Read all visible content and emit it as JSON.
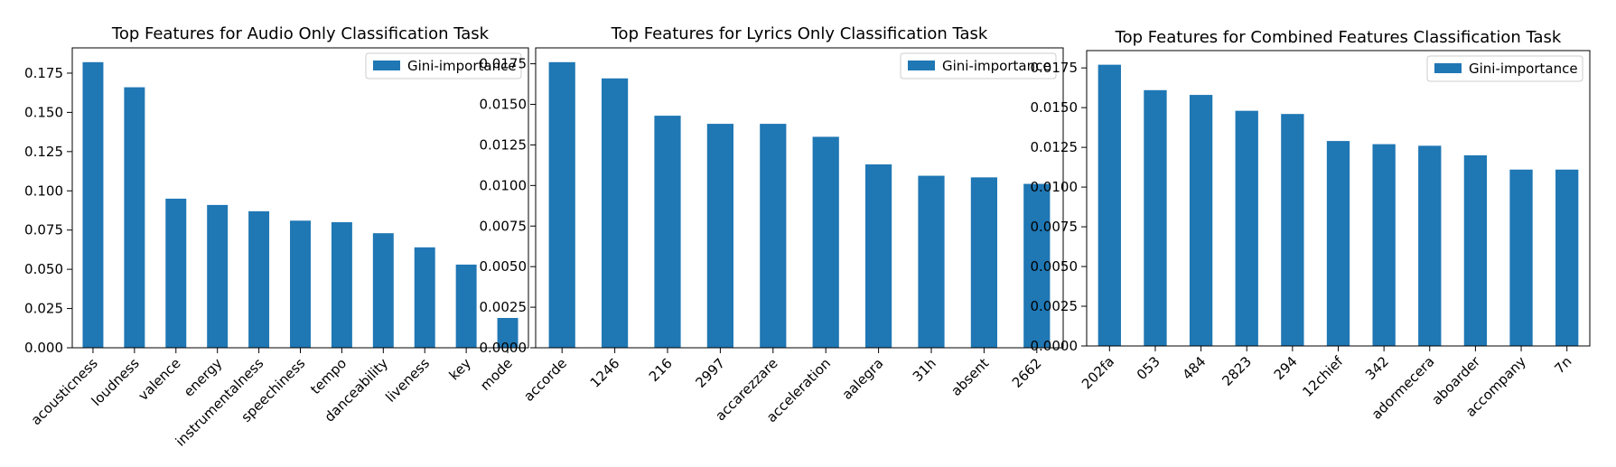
{
  "chart_data": [
    {
      "type": "bar",
      "title": "Top Features for Audio Only Classification Task",
      "xlabel": "",
      "ylabel": "",
      "categories": [
        "acousticness",
        "loudness",
        "valence",
        "energy",
        "instrumentalness",
        "speechiness",
        "tempo",
        "danceability",
        "liveness",
        "key",
        "mode"
      ],
      "series": [
        {
          "name": "Gini-importance",
          "values": [
            0.182,
            0.166,
            0.095,
            0.091,
            0.087,
            0.081,
            0.08,
            0.073,
            0.064,
            0.053,
            0.019
          ]
        }
      ],
      "ylim": [
        0,
        0.1911
      ],
      "yticks": [
        "0.000",
        "0.025",
        "0.050",
        "0.075",
        "0.100",
        "0.125",
        "0.150",
        "0.175"
      ],
      "ytick_values": [
        0,
        0.025,
        0.05,
        0.075,
        0.1,
        0.125,
        0.15,
        0.175
      ],
      "legend": "top-right",
      "grid": false,
      "color": "#1f77b4"
    },
    {
      "type": "bar",
      "title": "Top Features for Lyrics Only Classification Task",
      "xlabel": "",
      "ylabel": "",
      "categories": [
        "accorde",
        "1246",
        "216",
        "2997",
        "accarezzare",
        "acceleration",
        "aalegra",
        "31h",
        "absent",
        "2662"
      ],
      "series": [
        {
          "name": "Gini-importance",
          "values": [
            0.0176,
            0.0166,
            0.0143,
            0.0138,
            0.0138,
            0.013,
            0.0113,
            0.0106,
            0.0105,
            0.0101
          ]
        }
      ],
      "ylim": [
        0,
        0.01848
      ],
      "yticks": [
        "0.0000",
        "0.0025",
        "0.0050",
        "0.0075",
        "0.0100",
        "0.0125",
        "0.0150",
        "0.0175"
      ],
      "ytick_values": [
        0,
        0.0025,
        0.005,
        0.0075,
        0.01,
        0.0125,
        0.015,
        0.0175
      ],
      "legend": "top-right",
      "grid": false,
      "color": "#1f77b4"
    },
    {
      "type": "bar",
      "title": "Top Features for Combined Features Classification Task",
      "xlabel": "",
      "ylabel": "",
      "categories": [
        "202fa",
        "053",
        "484",
        "2823",
        "294",
        "12chief",
        "342",
        "adormecera",
        "aboarder",
        "accompany",
        "7n"
      ],
      "series": [
        {
          "name": "Gini-importance",
          "values": [
            0.0177,
            0.0161,
            0.0158,
            0.0148,
            0.0146,
            0.0129,
            0.0127,
            0.0126,
            0.012,
            0.0111,
            0.0111
          ]
        }
      ],
      "ylim": [
        0,
        0.01859
      ],
      "yticks": [
        "0.0000",
        "0.0025",
        "0.0050",
        "0.0075",
        "0.0100",
        "0.0125",
        "0.0150",
        "0.0175"
      ],
      "ytick_values": [
        0,
        0.0025,
        0.005,
        0.0075,
        0.01,
        0.0125,
        0.015,
        0.0175
      ],
      "legend": "top-right",
      "grid": false,
      "color": "#1f77b4"
    }
  ]
}
